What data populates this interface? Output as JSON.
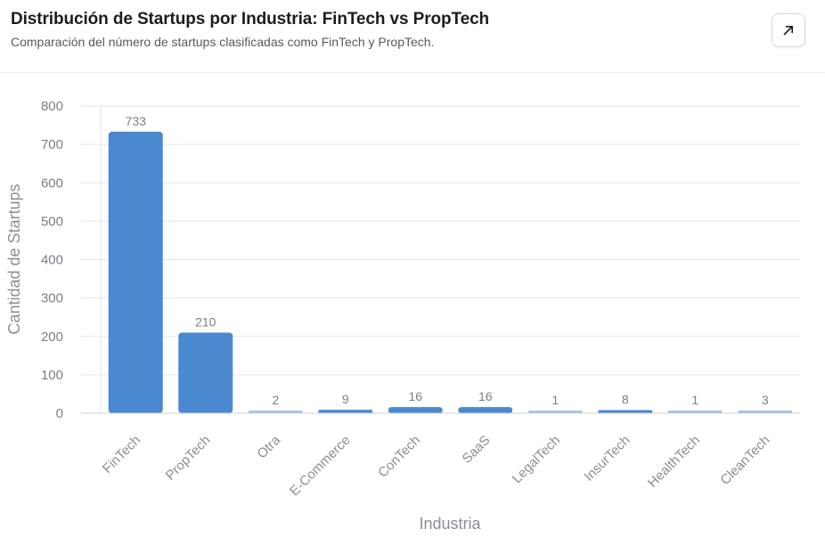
{
  "header": {
    "title": "Distribución de Startups por Industria: FinTech vs PropTech",
    "subtitle": "Comparación del número de startups clasificadas como FinTech y PropTech.",
    "expand_icon": "arrow-up-right-icon"
  },
  "chart_data": {
    "type": "bar",
    "title": "Distribución de Startups por Industria: FinTech vs PropTech",
    "subtitle": "Comparación del número de startups clasificadas como FinTech y PropTech.",
    "xlabel": "Industria",
    "ylabel": "Cantidad de Startups",
    "categories": [
      "FinTech",
      "PropTech",
      "Otra",
      "E-Commerce",
      "ConTech",
      "SaaS",
      "LegalTech",
      "InsurTech",
      "HealthTech",
      "CleanTech"
    ],
    "values": [
      733,
      210,
      2,
      9,
      16,
      16,
      1,
      8,
      1,
      3
    ],
    "ylim": [
      0,
      800
    ],
    "yticks": [
      0,
      100,
      200,
      300,
      400,
      500,
      600,
      700,
      800
    ],
    "grid": true,
    "legend": "none",
    "colors": {
      "bar": "#4a89d0",
      "bar_small": "#5f97d6",
      "grid": "#e5e5e5",
      "axis": "#cfcfcf"
    }
  }
}
